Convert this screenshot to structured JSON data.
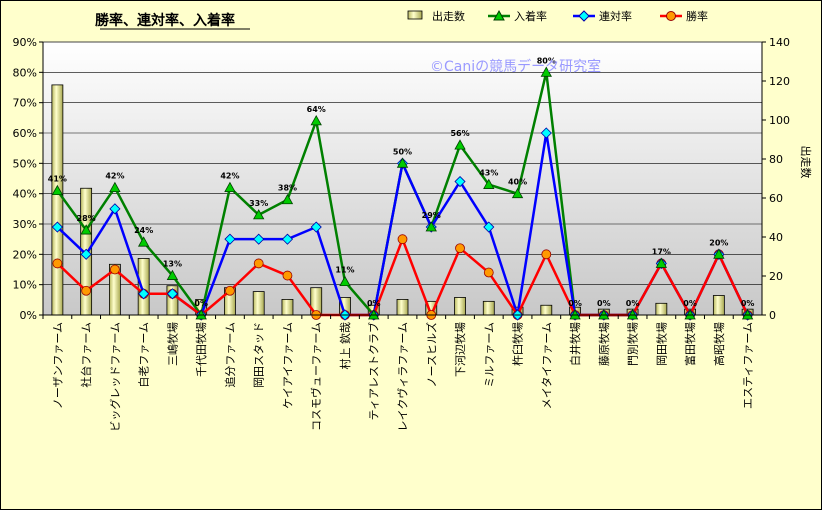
{
  "chart_data": {
    "type": "bar",
    "title": "勝率、連対率、入着率",
    "watermark": "©Caniの競馬データ研究室",
    "ylabel_right": "出走数",
    "ylim_left": [
      0,
      90
    ],
    "ylim_right": [
      0,
      140
    ],
    "yticks_left": [
      "0%",
      "10%",
      "20%",
      "30%",
      "40%",
      "50%",
      "60%",
      "70%",
      "80%",
      "90%"
    ],
    "yticks_right": [
      "0",
      "20",
      "40",
      "60",
      "80",
      "100",
      "120",
      "140"
    ],
    "grid": true,
    "legend_position": "top",
    "categories": [
      "ノーザンファーム",
      "社台ファーム",
      "ビッグレッドファーム",
      "白老ファーム",
      "三嶋牧場",
      "千代田牧場",
      "追分ファーム",
      "岡田スタッド",
      "ケイアイファーム",
      "コスモヴューファーム",
      "村上 欽哉",
      "ティアレストクラブ",
      "レイクヴィラファーム",
      "ノースヒルズ",
      "下河辺牧場",
      "ミルファーム",
      "杵臼牧場",
      "メイタイファーム",
      "白井牧場",
      "藤原牧場",
      "門別牧場",
      "岡田牧場",
      "富田牧場",
      "高昭牧場",
      "エスティファーム"
    ],
    "series": [
      {
        "name": "出走数",
        "kind": "bar",
        "axis": "right",
        "color": "#dede7a",
        "values": [
          118,
          65,
          26,
          29,
          15,
          8,
          14,
          12,
          8,
          14,
          9,
          5,
          8,
          7,
          9,
          7,
          4,
          5,
          4,
          3,
          3,
          6,
          3,
          10,
          3
        ]
      },
      {
        "name": "入着率",
        "kind": "line",
        "axis": "left",
        "color": "#008000",
        "values": [
          41,
          28,
          42,
          24,
          13,
          0,
          42,
          33,
          38,
          64,
          11,
          0,
          50,
          29,
          56,
          43,
          40,
          80,
          0,
          0,
          0,
          17,
          0,
          20,
          0
        ]
      },
      {
        "name": "連対率",
        "kind": "line",
        "axis": "left",
        "color": "#0000ff",
        "values": [
          29,
          20,
          35,
          7,
          7,
          0,
          25,
          25,
          25,
          29,
          0,
          0,
          50,
          29,
          44,
          29,
          0,
          60,
          0,
          0,
          0,
          17,
          0,
          20,
          0
        ]
      },
      {
        "name": "勝率",
        "kind": "line",
        "axis": "left",
        "color": "#ff0000",
        "values": [
          17,
          8,
          15,
          7,
          7,
          0,
          8,
          17,
          13,
          0,
          0,
          0,
          25,
          0,
          22,
          14,
          0,
          20,
          0,
          0,
          0,
          17,
          0,
          20,
          0
        ]
      }
    ],
    "data_labels": [
      "41%",
      "28%",
      "42%",
      "24%",
      "13%",
      "0%",
      "42%",
      "33%",
      "38%",
      "64%",
      "11%",
      "0%",
      "50%",
      "29%",
      "56%",
      "43%",
      "40%",
      "80%",
      "0%",
      "0%",
      "0%",
      "17%",
      "0%",
      "20%",
      "0%"
    ]
  }
}
